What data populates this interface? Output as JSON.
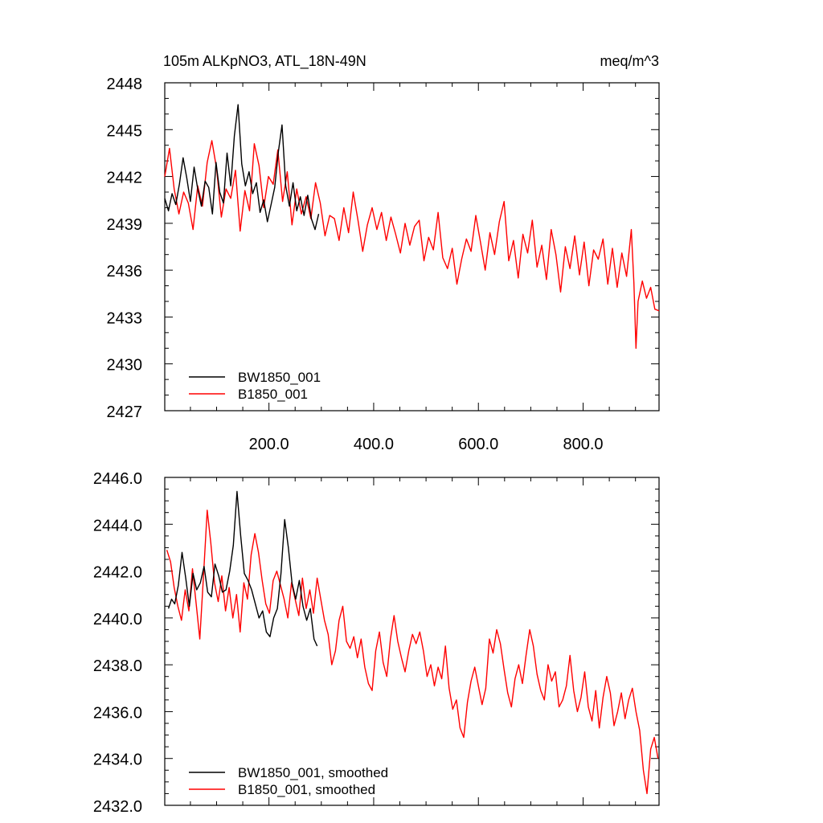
{
  "chart_data": [
    {
      "type": "line",
      "title": "105m ALKpNO3, ATL_18N-49N",
      "units": "meq/m^3",
      "xlim": [
        1,
        945
      ],
      "ylim": [
        2427,
        2448
      ],
      "xticks": [
        200,
        400,
        600,
        800
      ],
      "xtick_labels": [
        "200.0",
        "400.0",
        "600.0",
        "800.0"
      ],
      "yticks": [
        2427,
        2430,
        2433,
        2436,
        2439,
        2442,
        2445,
        2448
      ],
      "ytick_labels": [
        "2427",
        "2430",
        "2433",
        "2436",
        "2439",
        "2442",
        "2445",
        "2448"
      ],
      "legend_position": "bottom-left",
      "series": [
        {
          "name": "BW1850_001",
          "color": "#000000",
          "x": [
            1,
            8,
            15,
            22,
            29,
            36,
            43,
            50,
            57,
            64,
            71,
            78,
            85,
            92,
            99,
            106,
            113,
            120,
            127,
            134,
            141,
            148,
            155,
            162,
            169,
            176,
            183,
            190,
            197,
            204,
            211,
            218,
            225,
            232,
            239,
            246,
            253,
            260,
            267,
            274,
            281,
            288,
            295
          ],
          "values": [
            2440.6,
            2439.8,
            2440.9,
            2440.2,
            2441.5,
            2443.2,
            2441.9,
            2440.4,
            2442.6,
            2441.2,
            2440.1,
            2441.7,
            2441.3,
            2439.6,
            2442.9,
            2441.0,
            2440.3,
            2443.5,
            2441.4,
            2444.6,
            2446.6,
            2442.8,
            2441.4,
            2442.3,
            2440.9,
            2441.6,
            2439.7,
            2440.5,
            2439.1,
            2440.2,
            2441.3,
            2443.6,
            2445.3,
            2441.4,
            2440.1,
            2441.6,
            2439.8,
            2440.7,
            2439.5,
            2440.8,
            2439.3,
            2438.6,
            2439.6
          ]
        },
        {
          "name": "B1850_001",
          "color": "#ff0000",
          "x": [
            1,
            10,
            19,
            28,
            37,
            46,
            55,
            64,
            73,
            82,
            91,
            100,
            109,
            118,
            127,
            136,
            145,
            154,
            163,
            172,
            181,
            190,
            199,
            208,
            217,
            226,
            235,
            244,
            253,
            262,
            271,
            280,
            289,
            298,
            307,
            316,
            325,
            334,
            343,
            352,
            361,
            370,
            379,
            388,
            397,
            406,
            415,
            424,
            433,
            442,
            451,
            460,
            469,
            478,
            487,
            496,
            505,
            514,
            523,
            532,
            541,
            550,
            559,
            568,
            577,
            586,
            595,
            604,
            613,
            622,
            631,
            640,
            649,
            658,
            667,
            676,
            685,
            694,
            703,
            712,
            721,
            730,
            739,
            748,
            757,
            766,
            775,
            784,
            793,
            802,
            811,
            820,
            829,
            838,
            847,
            856,
            865,
            874,
            883,
            892,
            897,
            901,
            905,
            913,
            921,
            929,
            937,
            945
          ],
          "values": [
            2442.0,
            2443.8,
            2441.2,
            2439.6,
            2441.0,
            2440.3,
            2438.6,
            2441.4,
            2440.1,
            2442.9,
            2444.3,
            2442.5,
            2439.4,
            2441.2,
            2440.6,
            2442.4,
            2438.5,
            2441.1,
            2439.8,
            2444.1,
            2442.7,
            2440.0,
            2442.0,
            2441.5,
            2443.7,
            2440.4,
            2442.3,
            2438.9,
            2441.2,
            2439.6,
            2440.7,
            2439.3,
            2441.6,
            2440.3,
            2438.2,
            2439.5,
            2439.3,
            2437.9,
            2440.0,
            2438.4,
            2441.0,
            2439.2,
            2437.2,
            2438.9,
            2440.0,
            2438.6,
            2439.7,
            2437.9,
            2439.4,
            2438.3,
            2437.1,
            2439.0,
            2437.6,
            2438.8,
            2439.2,
            2436.6,
            2438.1,
            2437.3,
            2439.7,
            2436.8,
            2436.1,
            2437.4,
            2435.1,
            2436.7,
            2438.0,
            2437.2,
            2439.5,
            2437.8,
            2436.0,
            2438.4,
            2437.0,
            2439.1,
            2440.4,
            2436.6,
            2437.9,
            2435.5,
            2438.3,
            2437.1,
            2439.2,
            2436.2,
            2437.6,
            2435.4,
            2438.6,
            2437.0,
            2434.6,
            2437.5,
            2436.1,
            2438.2,
            2435.7,
            2437.8,
            2435.0,
            2437.3,
            2436.7,
            2438.0,
            2435.1,
            2437.4,
            2434.9,
            2437.1,
            2435.6,
            2438.6,
            2435.2,
            2431.0,
            2434.0,
            2435.3,
            2434.2,
            2434.9,
            2433.5,
            2433.4
          ]
        }
      ]
    },
    {
      "type": "line",
      "title": "",
      "xlim": [
        1,
        945
      ],
      "ylim": [
        2432.0,
        2446.0
      ],
      "xticks": [
        200,
        400,
        600,
        800
      ],
      "yticks": [
        2432.0,
        2434.0,
        2436.0,
        2438.0,
        2440.0,
        2442.0,
        2444.0,
        2446.0
      ],
      "ytick_labels": [
        "2432.0",
        "2434.0",
        "2436.0",
        "2438.0",
        "2440.0",
        "2442.0",
        "2444.0",
        "2446.0"
      ],
      "legend_position": "bottom-left",
      "series": [
        {
          "name": "BW1850_001, smoothed",
          "color": "#000000",
          "x": [
            8,
            14,
            20,
            27,
            34,
            41,
            48,
            55,
            62,
            69,
            76,
            83,
            90,
            97,
            104,
            111,
            118,
            125,
            132,
            139,
            146,
            153,
            160,
            167,
            174,
            181,
            188,
            195,
            202,
            209,
            216,
            223,
            230,
            237,
            244,
            251,
            258,
            265,
            272,
            279,
            286,
            292
          ],
          "values": [
            2440.4,
            2440.8,
            2440.6,
            2441.4,
            2442.8,
            2441.7,
            2440.5,
            2441.9,
            2441.2,
            2441.5,
            2442.2,
            2441.1,
            2440.9,
            2442.3,
            2441.8,
            2441.1,
            2441.2,
            2442.0,
            2443.1,
            2445.4,
            2443.5,
            2441.9,
            2441.6,
            2441.2,
            2440.6,
            2440.0,
            2440.3,
            2439.4,
            2439.2,
            2440.0,
            2440.4,
            2441.9,
            2444.2,
            2443.0,
            2441.5,
            2440.8,
            2441.6,
            2440.5,
            2439.9,
            2440.4,
            2439.1,
            2438.8
          ]
        },
        {
          "name": "B1850_001, smoothed",
          "color": "#ff0000",
          "x": [
            5,
            12,
            19,
            26,
            33,
            40,
            47,
            54,
            61,
            68,
            75,
            82,
            89,
            96,
            103,
            110,
            117,
            124,
            131,
            138,
            145,
            152,
            159,
            166,
            173,
            180,
            187,
            194,
            201,
            208,
            215,
            222,
            229,
            236,
            243,
            250,
            257,
            264,
            271,
            278,
            285,
            292,
            299,
            306,
            313,
            320,
            327,
            334,
            341,
            348,
            355,
            362,
            369,
            376,
            383,
            390,
            397,
            404,
            411,
            418,
            425,
            432,
            439,
            446,
            453,
            460,
            467,
            474,
            481,
            488,
            495,
            502,
            509,
            516,
            523,
            530,
            537,
            544,
            551,
            558,
            565,
            572,
            579,
            586,
            593,
            600,
            607,
            614,
            621,
            628,
            635,
            642,
            649,
            656,
            663,
            670,
            677,
            684,
            691,
            698,
            705,
            712,
            719,
            726,
            733,
            740,
            747,
            754,
            761,
            768,
            775,
            782,
            789,
            796,
            803,
            810,
            817,
            824,
            831,
            838,
            845,
            852,
            859,
            866,
            873,
            880,
            887,
            894,
            901,
            908,
            915,
            922,
            929,
            936,
            943
          ],
          "values": [
            2442.9,
            2442.4,
            2441.3,
            2440.5,
            2439.9,
            2441.2,
            2440.3,
            2442.1,
            2440.6,
            2439.1,
            2441.8,
            2444.6,
            2443.2,
            2441.5,
            2440.7,
            2441.8,
            2440.3,
            2441.3,
            2440.0,
            2441.0,
            2439.4,
            2441.5,
            2440.8,
            2442.7,
            2443.6,
            2442.8,
            2441.6,
            2440.6,
            2440.2,
            2441.6,
            2442.0,
            2441.4,
            2440.8,
            2440.0,
            2441.5,
            2440.8,
            2440.1,
            2441.7,
            2440.4,
            2441.2,
            2440.2,
            2441.7,
            2440.8,
            2439.9,
            2439.3,
            2438.0,
            2438.6,
            2439.9,
            2440.5,
            2439.0,
            2438.7,
            2439.2,
            2438.3,
            2439.1,
            2437.9,
            2437.2,
            2436.9,
            2438.6,
            2439.4,
            2438.1,
            2437.5,
            2439.1,
            2440.1,
            2439.0,
            2438.3,
            2437.7,
            2438.6,
            2439.3,
            2438.9,
            2439.4,
            2438.6,
            2437.5,
            2438.0,
            2437.1,
            2437.9,
            2437.4,
            2438.8,
            2437.0,
            2436.1,
            2436.5,
            2435.3,
            2434.9,
            2436.4,
            2437.3,
            2437.9,
            2437.1,
            2436.3,
            2437.0,
            2439.1,
            2438.5,
            2439.5,
            2438.9,
            2437.8,
            2436.8,
            2436.2,
            2437.4,
            2438.0,
            2437.2,
            2438.4,
            2439.5,
            2438.8,
            2437.6,
            2436.9,
            2436.5,
            2438.0,
            2437.3,
            2437.7,
            2436.2,
            2436.5,
            2437.1,
            2438.4,
            2436.9,
            2436.0,
            2436.6,
            2437.7,
            2436.2,
            2435.6,
            2436.9,
            2435.3,
            2436.6,
            2437.5,
            2436.8,
            2435.4,
            2436.0,
            2436.8,
            2435.7,
            2436.5,
            2437.0,
            2436.0,
            2435.2,
            2433.5,
            2432.5,
            2434.4,
            2434.9,
            2434.0
          ]
        }
      ]
    }
  ]
}
